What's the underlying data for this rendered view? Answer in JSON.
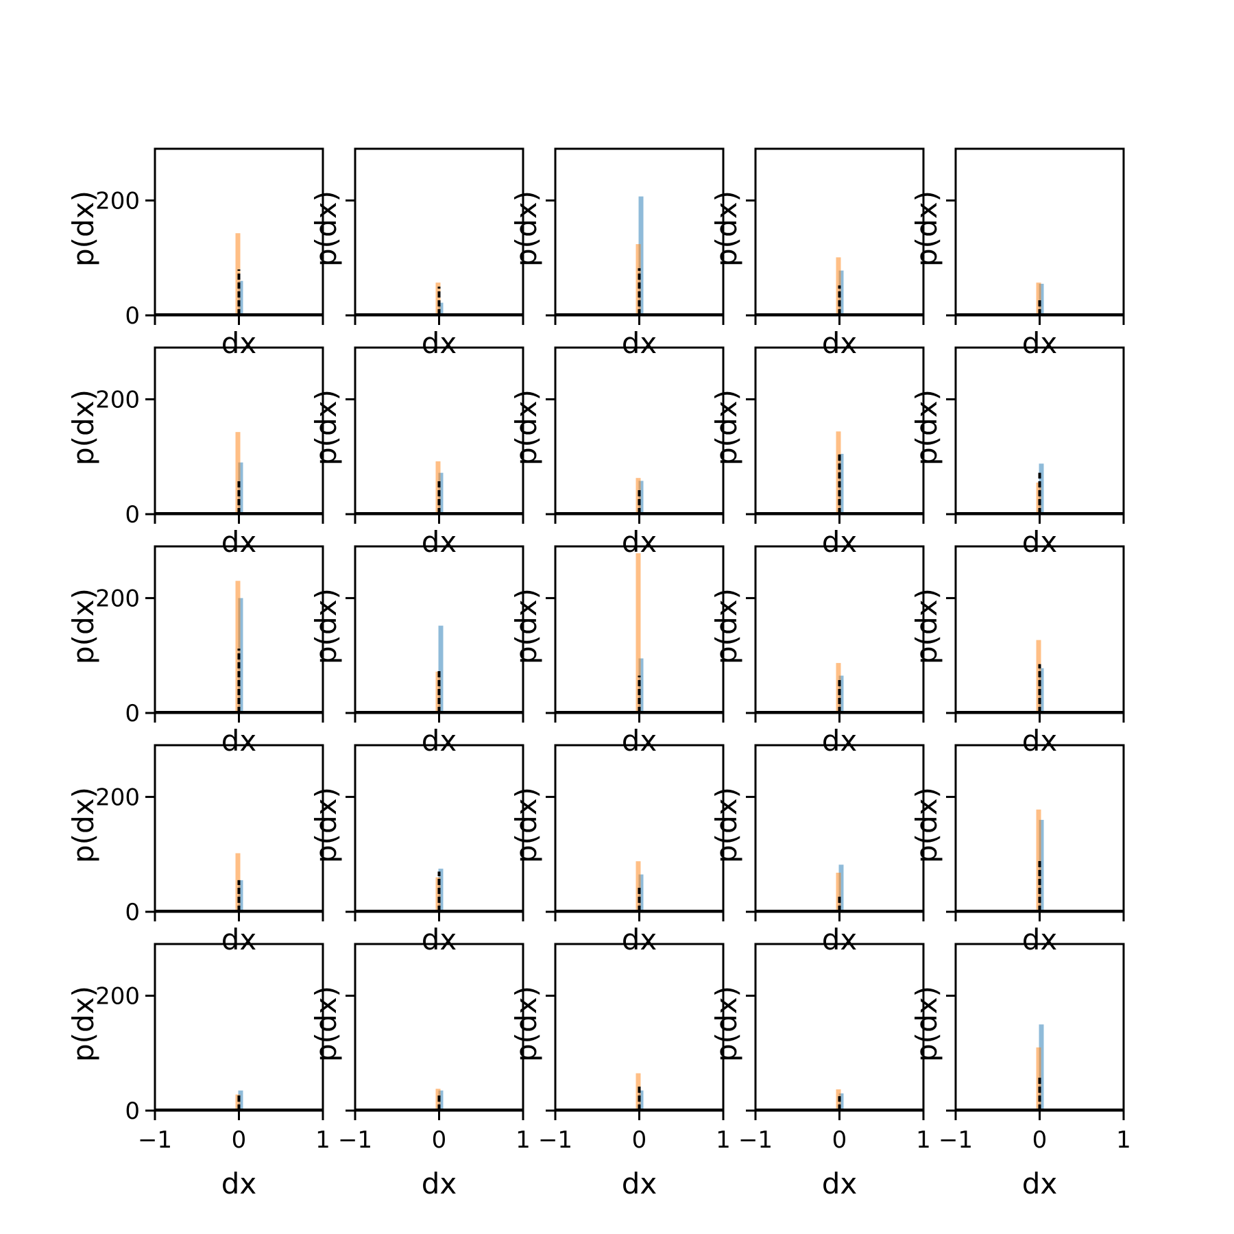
{
  "chart_data": {
    "type": "histogram-grid",
    "rows": 5,
    "cols": 5,
    "xlabel": "dx",
    "ylabel": "p(dx)",
    "xlim": [
      -1,
      1
    ],
    "ylim": [
      0,
      290
    ],
    "xticks": [
      -1,
      0,
      1
    ],
    "xtick_labels": [
      "−1",
      "0",
      "1"
    ],
    "yticks": [
      0,
      200
    ],
    "ytick_labels": [
      "0",
      "200"
    ],
    "colors": {
      "series_blue": "#1f77b4",
      "series_orange": "#ff7f0e",
      "density_line": "#000000",
      "axes": "#000000"
    },
    "panels": [
      {
        "blue": 60,
        "orange": 143,
        "black": 80
      },
      {
        "blue": 22,
        "orange": 57,
        "black": 50
      },
      {
        "blue": 207,
        "orange": 124,
        "black": 82
      },
      {
        "blue": 78,
        "orange": 101,
        "black": 52
      },
      {
        "blue": 55,
        "orange": 57,
        "black": 30
      },
      {
        "blue": 90,
        "orange": 143,
        "black": 62
      },
      {
        "blue": 72,
        "orange": 92,
        "black": 62
      },
      {
        "blue": 58,
        "orange": 63,
        "black": 45
      },
      {
        "blue": 105,
        "orange": 144,
        "black": 105
      },
      {
        "blue": 88,
        "orange": 55,
        "black": 72
      },
      {
        "blue": 200,
        "orange": 230,
        "black": 112
      },
      {
        "blue": 152,
        "orange": 72,
        "black": 75
      },
      {
        "blue": 95,
        "orange": 278,
        "black": 65
      },
      {
        "blue": 65,
        "orange": 87,
        "black": 60
      },
      {
        "blue": 78,
        "orange": 127,
        "black": 85
      },
      {
        "blue": 55,
        "orange": 102,
        "black": 55
      },
      {
        "blue": 75,
        "orange": 60,
        "black": 70
      },
      {
        "blue": 65,
        "orange": 88,
        "black": 42
      },
      {
        "blue": 82,
        "orange": 68,
        "black": 30
      },
      {
        "blue": 160,
        "orange": 178,
        "black": 92
      },
      {
        "blue": 35,
        "orange": 28,
        "black": 30
      },
      {
        "blue": 35,
        "orange": 38,
        "black": 28
      },
      {
        "blue": 35,
        "orange": 65,
        "black": 42
      },
      {
        "blue": 30,
        "orange": 37,
        "black": 25
      },
      {
        "blue": 150,
        "orange": 110,
        "black": 58
      }
    ]
  }
}
